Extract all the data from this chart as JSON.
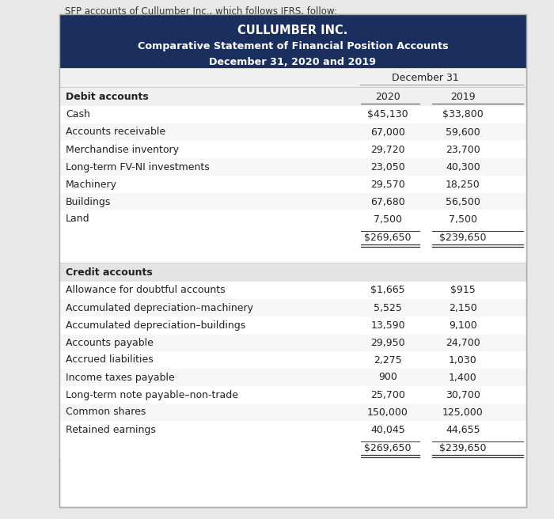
{
  "page_note": "SFP accounts of Cullumber Inc., which follows IFRS, follow:",
  "header_bg": "#1b2f5e",
  "header_text_color": "#ffffff",
  "title_line1": "CULLUMBER INC.",
  "title_line2": "Comparative Statement of Financial Position Accounts",
  "title_line3": "December 31, 2020 and 2019",
  "col_header_center": "December 31",
  "col2020": "2020",
  "col2019": "2019",
  "debit_label": "Debit accounts",
  "debit_rows": [
    {
      "label": "Cash",
      "v2020": "$45,130",
      "v2019": "$33,800"
    },
    {
      "label": "Accounts receivable",
      "v2020": "67,000",
      "v2019": "59,600"
    },
    {
      "label": "Merchandise inventory",
      "v2020": "29,720",
      "v2019": "23,700"
    },
    {
      "label": "Long-term FV-NI investments",
      "v2020": "23,050",
      "v2019": "40,300"
    },
    {
      "label": "Machinery",
      "v2020": "29,570",
      "v2019": "18,250"
    },
    {
      "label": "Buildings",
      "v2020": "67,680",
      "v2019": "56,500"
    },
    {
      "label": "Land",
      "v2020": "7,500",
      "v2019": "7,500"
    }
  ],
  "debit_total_2020": "$269,650",
  "debit_total_2019": "$239,650",
  "credit_label": "Credit accounts",
  "credit_rows": [
    {
      "label": "Allowance for doubtful accounts",
      "v2020": "$1,665",
      "v2019": "$915"
    },
    {
      "label": "Accumulated depreciation–machinery",
      "v2020": "5,525",
      "v2019": "2,150"
    },
    {
      "label": "Accumulated depreciation–buildings",
      "v2020": "13,590",
      "v2019": "9,100"
    },
    {
      "label": "Accounts payable",
      "v2020": "29,950",
      "v2019": "24,700"
    },
    {
      "label": "Accrued liabilities",
      "v2020": "2,275",
      "v2019": "1,030"
    },
    {
      "label": "Income taxes payable",
      "v2020": "900",
      "v2019": "1,400"
    },
    {
      "label": "Long-term note payable–non-trade",
      "v2020": "25,700",
      "v2019": "30,700"
    },
    {
      "label": "Common shares",
      "v2020": "150,000",
      "v2019": "125,000"
    },
    {
      "label": "Retained earnings",
      "v2020": "40,045",
      "v2019": "44,655"
    }
  ],
  "credit_total_2020": "$269,650",
  "credit_total_2019": "$239,650",
  "page_bg": "#e8e8e8",
  "table_bg": "#ffffff",
  "subhdr_bg": "#f0f0f0",
  "section_header_bg": "#e4e4e4",
  "border_color": "#bbbbbb",
  "text_color": "#222222",
  "note_text_color": "#333333",
  "body_fontsize": 9.0,
  "title1_fontsize": 10.5,
  "title2_fontsize": 9.2
}
